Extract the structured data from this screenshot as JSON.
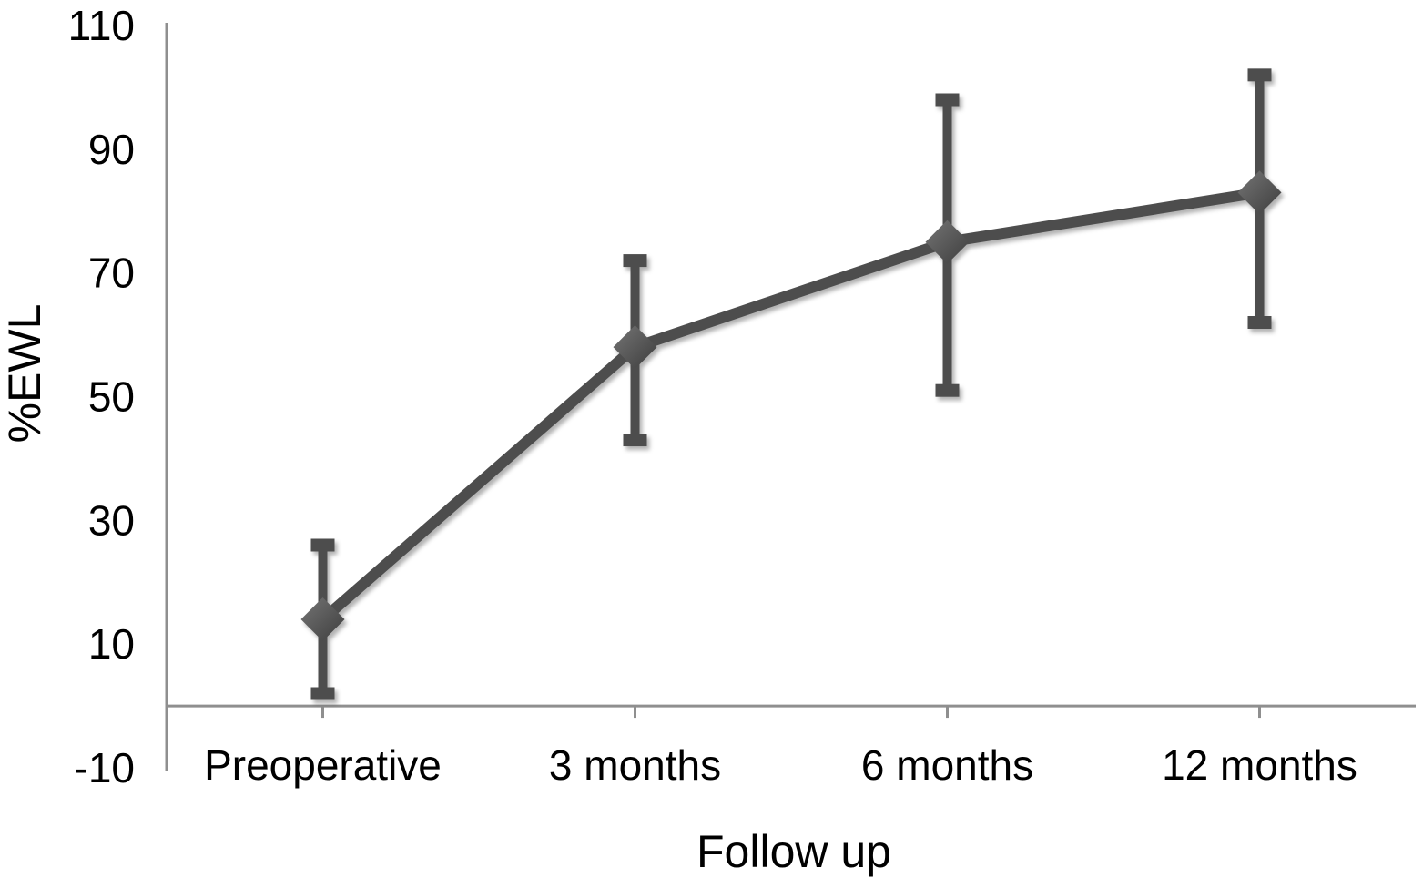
{
  "chart_data": {
    "type": "line",
    "categories": [
      "Preoperative",
      "3 months",
      "6 months",
      "12 months"
    ],
    "series": [
      {
        "name": "%EWL",
        "values": [
          14,
          58,
          75,
          83
        ],
        "error_low": [
          2,
          43,
          51,
          62
        ],
        "error_high": [
          26,
          72,
          98,
          102
        ],
        "marker": "diamond",
        "color": "#4d4d4d"
      }
    ],
    "xlabel": "Follow up",
    "ylabel": "%EWL",
    "ylim": [
      -10,
      110
    ],
    "yticks": [
      110,
      90,
      70,
      50,
      30,
      10,
      -10
    ],
    "x_axis_cross_y": 0,
    "grid": false,
    "legend": "none",
    "background": "#ffffff",
    "axis_color": "#8f8f8f",
    "text_color": "#000000",
    "marker_color_light": "#757575",
    "marker_color_dark": "#3d3d3d"
  }
}
